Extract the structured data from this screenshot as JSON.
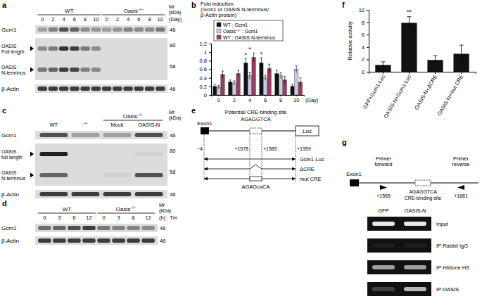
{
  "panel_labels": [
    "a",
    "b",
    "c",
    "d",
    "e",
    "f",
    "g"
  ],
  "chart_data": [
    {
      "type": "bar",
      "title": "Fold induction",
      "subtitle": [
        "(Gcm1 or OASIS N-terminus/",
        "β-Actin protein)"
      ],
      "x_label": "(Day)",
      "categories": [
        0,
        2,
        4,
        6,
        8,
        10
      ],
      "series": [
        {
          "name": "WT : Gcm1",
          "color": "#111111",
          "values": [
            0.2,
            0.3,
            0.75,
            0.75,
            0.5,
            0.2
          ],
          "errors": [
            0.05,
            0.05,
            0.1,
            0.12,
            0.08,
            0.05
          ]
        },
        {
          "name": "Oasis−/− : Gcm1",
          "color": "#c8cbe8",
          "values": [
            0.18,
            0.28,
            0.45,
            0.4,
            0.45,
            0.6
          ],
          "errors": [
            0.04,
            0.05,
            0.08,
            0.06,
            0.07,
            0.08
          ]
        },
        {
          "name": "WT : OASIS N-terminus",
          "color": "#9e3a5c",
          "values": [
            0.48,
            0.5,
            0.88,
            0.62,
            0.35,
            0.3
          ],
          "errors": [
            0.08,
            0.08,
            0.1,
            0.1,
            0.08,
            0.1
          ]
        }
      ],
      "ylim": [
        0,
        1.2
      ],
      "yticks": [
        0,
        0.2,
        0.4,
        0.6,
        0.8,
        1,
        1.2
      ],
      "legend": "top-left",
      "annotations": [
        {
          "text": "*",
          "category": 2,
          "series": 0,
          "y": 0.88
        },
        {
          "text": "*",
          "category": 2,
          "y": 1.02
        },
        {
          "text": "*",
          "category": 3,
          "series": 0,
          "y": 0.9
        }
      ]
    },
    {
      "type": "bar",
      "y_label": "Relative activity",
      "categories": [
        "GFP+Gcm1-Luc",
        "OASIS-N+Gcm1-Luc",
        "OASIS-N+ΔCRE",
        "OASIS-N+mut CRE"
      ],
      "values": [
        1.1,
        7.9,
        1.9,
        2.9
      ],
      "errors": [
        0.5,
        1.0,
        0.7,
        1.4
      ],
      "color": "#111111",
      "ylim": [
        0,
        10
      ],
      "yticks": [
        0,
        2,
        4,
        6,
        8,
        10
      ],
      "annotations": [
        {
          "text": "**",
          "category": 1,
          "y": 9.3
        }
      ]
    }
  ],
  "blots": {
    "a": {
      "spans": [
        {
          "label": "WT",
          "from": 0,
          "to": 5
        },
        {
          "label": "Oasis−/−",
          "from": 6,
          "to": 11
        }
      ],
      "lane_labels": [
        0,
        2,
        4,
        6,
        8,
        10,
        0,
        2,
        4,
        6,
        8,
        10
      ],
      "unit_label": "(Day)",
      "mr": [
        "Mr",
        "(kDa)"
      ],
      "rows": [
        {
          "labels": [
            [
              "Gcm1"
            ]
          ],
          "markers": [
            46
          ],
          "bands": [
            [
              0.3,
              0.45,
              0.7,
              0.6,
              0.4,
              0.35,
              0.3,
              0.35,
              0.45,
              0.4,
              0.4,
              0.5
            ]
          ]
        },
        {
          "labels": [
            [
              "OASIS",
              "Full length"
            ],
            [
              "OASIS",
              "N-terminus"
            ]
          ],
          "markers": [
            80,
            58
          ],
          "bands": [
            [
              0.4,
              0.5,
              0.85,
              0.8,
              0.5,
              0.4,
              0,
              0,
              0,
              0,
              0,
              0
            ],
            [
              0.5,
              0.6,
              0.8,
              0.75,
              0.45,
              0.4,
              0,
              0,
              0,
              0,
              0,
              0
            ]
          ]
        },
        {
          "labels": [
            [
              "β-Actin"
            ]
          ],
          "markers": [
            46
          ],
          "bands": [
            [
              0.8,
              0.8,
              0.8,
              0.8,
              0.8,
              0.8,
              0.8,
              0.8,
              0.8,
              0.8,
              0.8,
              0.8
            ]
          ]
        }
      ]
    },
    "c": {
      "spans": [
        {
          "label": "Oasis−/−",
          "from": 2,
          "to": 3
        }
      ],
      "lane_labels": [
        "WT",
        "−/−",
        "Mock",
        "OASIS-N"
      ],
      "mr": [
        "Mr",
        "(kDa)"
      ],
      "rows": [
        {
          "labels": [
            [
              "Gcm1"
            ]
          ],
          "markers": [
            46
          ],
          "bands": [
            [
              0.7,
              0.3,
              0.3,
              0.7
            ]
          ]
        },
        {
          "labels": [
            [
              "OASIS",
              "full length"
            ],
            [
              "OASIS",
              "N-terminus"
            ]
          ],
          "markers": [
            80,
            58
          ],
          "bands": [
            [
              0.95,
              0,
              0,
              0.05
            ],
            [
              0.6,
              0,
              0.05,
              0.7
            ]
          ]
        },
        {
          "labels": [
            [
              "β-Actin"
            ]
          ],
          "markers": [
            46
          ],
          "bands": [
            [
              0.8,
              0.8,
              0.8,
              0.8
            ]
          ]
        }
      ]
    },
    "d": {
      "spans": [
        {
          "label": "WT",
          "from": 0,
          "to": 3
        },
        {
          "label": "Oasis−/−",
          "from": 4,
          "to": 7
        }
      ],
      "lane_labels": [
        0,
        3,
        6,
        12,
        0,
        3,
        6,
        12
      ],
      "unit_label": "(h) : Tm",
      "mr": [
        "Mr",
        "(kDa)"
      ],
      "rows": [
        {
          "labels": [
            [
              "Gcm1"
            ]
          ],
          "markers": [
            46
          ],
          "bands": [
            [
              0.55,
              0.6,
              0.7,
              0.8,
              0.5,
              0.45,
              0.45,
              0.4
            ]
          ]
        },
        {
          "labels": [
            [
              "β-Actin"
            ]
          ],
          "markers": [
            46
          ],
          "bands": [
            [
              0.8,
              0.8,
              0.8,
              0.8,
              0.8,
              0.8,
              0.8,
              0.8
            ]
          ]
        }
      ]
    }
  },
  "diagram_e": {
    "site_title": "Potential CRE-binding site",
    "site_seq": "AGAGGTCA",
    "exon": "Exon1",
    "reporter": "Luc",
    "positions": [
      "−4",
      "+1578",
      "+1585",
      "+1959"
    ],
    "constructs": [
      "Gcm1-Luc",
      "ΔCRE",
      "mut CRE"
    ],
    "mut_seq": "AGAGcaCA"
  },
  "diagram_g": {
    "exon": "Exon1",
    "primer_forward": [
      "Primer",
      "forward"
    ],
    "primer_forward_pos": "+1555",
    "site_seq": "AGAGGTCA",
    "site_label": "CRE-binding site",
    "primer_reverse": [
      "Primer",
      "reverse"
    ],
    "primer_reverse_pos": "+1681",
    "lanes": [
      "GFP",
      "OASIS-N"
    ],
    "rows": [
      {
        "label": "Input",
        "bands": [
          0.9,
          0.9
        ]
      },
      {
        "label": "IP:Rabbit IgG",
        "bands": [
          0.05,
          0.05
        ]
      },
      {
        "label": "IP:Histone H3",
        "bands": [
          0.6,
          0.6
        ]
      },
      {
        "label": "IP:OASIS",
        "bands": [
          0.2,
          0.7
        ]
      }
    ]
  }
}
